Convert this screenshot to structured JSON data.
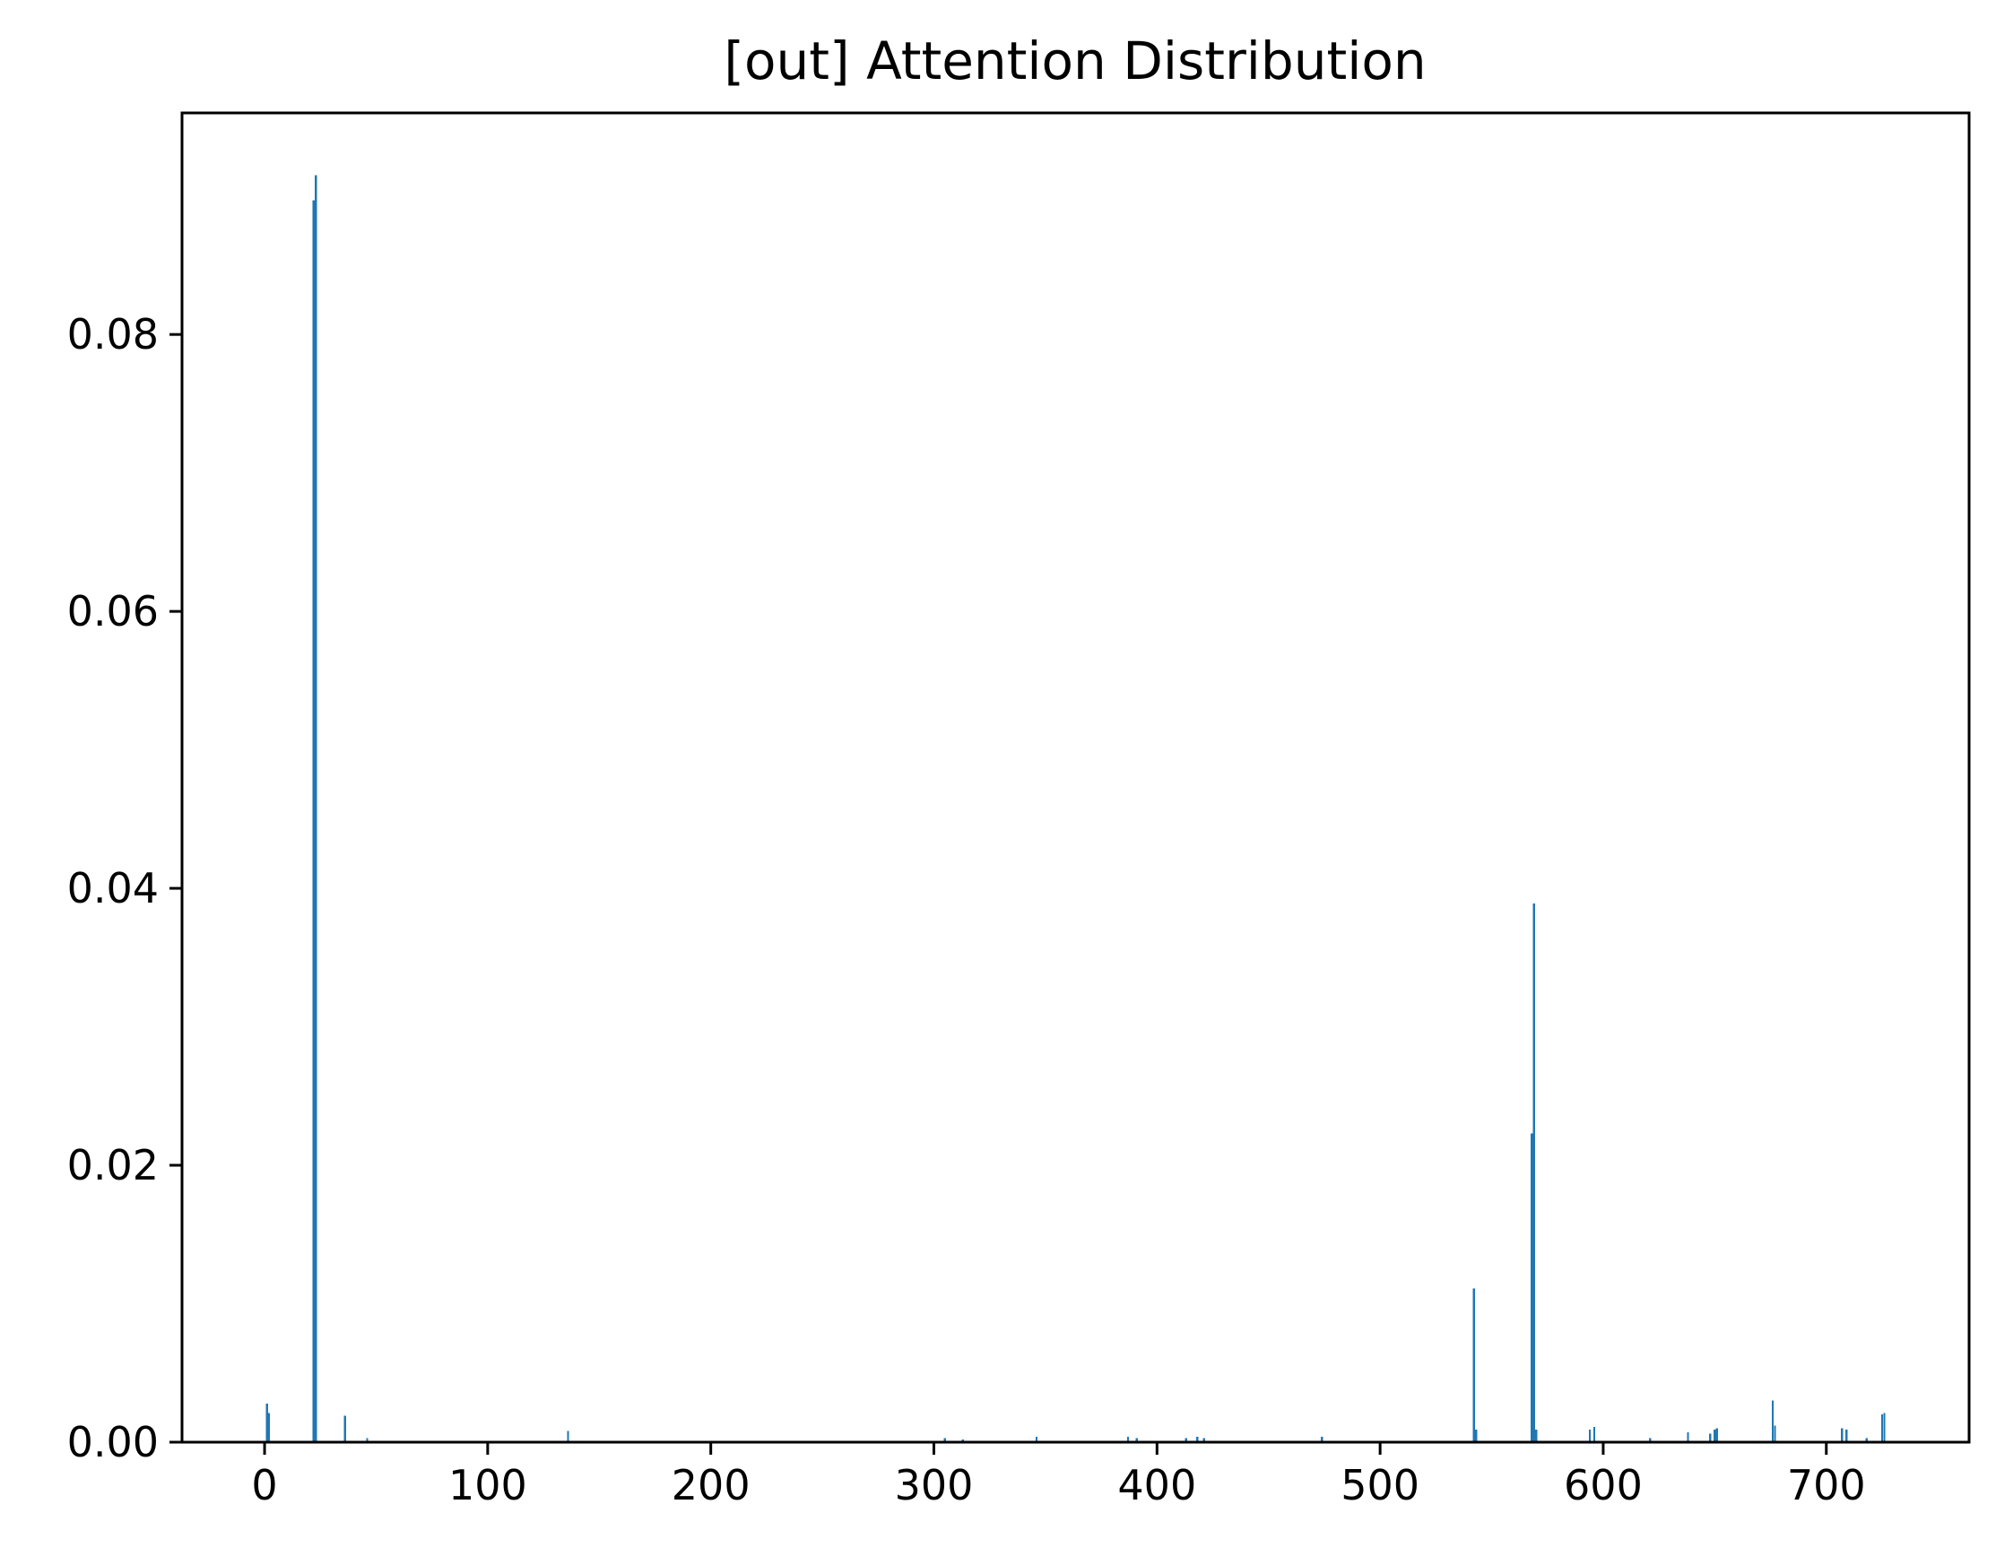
{
  "chart_data": {
    "type": "bar",
    "title": "[out] Attention Distribution",
    "xlabel": "",
    "ylabel": "",
    "xlim": [
      -37,
      764
    ],
    "ylim": [
      0,
      0.096
    ],
    "x_ticks": [
      0,
      100,
      200,
      300,
      400,
      500,
      600,
      700
    ],
    "x_tick_labels": [
      "0",
      "100",
      "200",
      "300",
      "400",
      "500",
      "600",
      "700"
    ],
    "y_ticks": [
      0.0,
      0.02,
      0.04,
      0.06,
      0.08
    ],
    "y_tick_labels": [
      "0.00",
      "0.02",
      "0.04",
      "0.06",
      "0.08"
    ],
    "grid": false,
    "bar_color": "#1f77b4",
    "x": [
      1,
      2,
      22,
      23,
      36,
      46,
      136,
      305,
      313,
      346,
      387,
      391,
      413,
      418,
      421,
      474,
      542,
      543,
      568,
      569,
      570,
      594,
      596,
      621,
      638,
      648,
      650,
      651,
      676,
      677,
      707,
      709,
      718,
      725,
      726
    ],
    "values": [
      0.0028,
      0.0021,
      0.0897,
      0.0915,
      0.0019,
      0.0003,
      0.0008,
      0.0003,
      0.0002,
      0.0004,
      0.0004,
      0.0003,
      0.0003,
      0.0004,
      0.0003,
      0.0004,
      0.0111,
      0.0009,
      0.0223,
      0.0389,
      0.0009,
      0.0009,
      0.0011,
      0.0003,
      0.0007,
      0.0006,
      0.0009,
      0.001,
      0.003,
      0.0012,
      0.001,
      0.0009,
      0.0003,
      0.002,
      0.0021
    ]
  }
}
